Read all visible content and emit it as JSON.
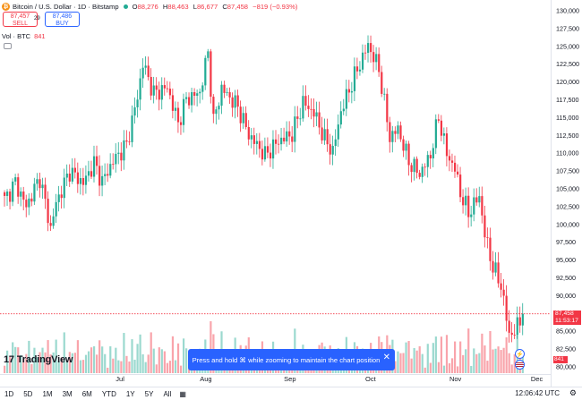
{
  "header": {
    "symbol_title": "Bitcoin / U.S. Dollar · 1D · Bitstamp",
    "ohlc": {
      "open": "88,276",
      "high": "88,463",
      "low": "86,677",
      "close": "87,458",
      "change": "−819 (−0.93%)"
    },
    "sell_price": "87,457",
    "sell_label": "SELL",
    "spread": "29",
    "buy_price": "87,486",
    "buy_label": "BUY",
    "volume_label": "Vol · BTC",
    "volume_value": "841"
  },
  "branding": {
    "logo_text": "TradingView"
  },
  "toast": {
    "message": "Press and hold ⌘ while zooming to maintain the chart position",
    "close_label": "✕"
  },
  "price_tag": {
    "price": "87,458",
    "countdown": "11:53:17"
  },
  "volume_tag": "841",
  "bottom_bar": {
    "ranges": [
      "1D",
      "5D",
      "1M",
      "3M",
      "6M",
      "YTD",
      "1Y",
      "5Y",
      "All"
    ],
    "calendar_icon": "calendar-range-icon",
    "time": "12:06:42 UTC",
    "settings_icon": "gear-icon"
  },
  "colors": {
    "up": "#22ab94",
    "down": "#f23645",
    "accent": "#2962ff"
  },
  "chart_data": {
    "type": "candlestick",
    "timeframe": "1D",
    "y_ticks": [
      130000,
      127500,
      125000,
      122500,
      120000,
      117500,
      115000,
      112500,
      110000,
      107500,
      105000,
      102500,
      100000,
      97500,
      95000,
      92500,
      90000,
      85000,
      82500,
      80000
    ],
    "y_tick_labels": [
      "130,000",
      "127,500",
      "125,000",
      "122,500",
      "120,000",
      "117,500",
      "115,000",
      "112,500",
      "110,000",
      "107,500",
      "105,000",
      "102,500",
      "100,000",
      "97,500",
      "95,000",
      "92,500",
      "90,000",
      "85,000",
      "82,500",
      "80,000"
    ],
    "ylim": [
      79000,
      130500
    ],
    "x_ticks": [
      {
        "label": "Jul",
        "index": 43
      },
      {
        "label": "Aug",
        "index": 74
      },
      {
        "label": "Sep",
        "index": 105
      },
      {
        "label": "Oct",
        "index": 135
      },
      {
        "label": "Nov",
        "index": 166
      },
      {
        "label": "Dec",
        "index": 196
      }
    ],
    "last_price": 87458,
    "anchors": [
      [
        0,
        103400
      ],
      [
        4,
        105900
      ],
      [
        8,
        102500
      ],
      [
        13,
        106600
      ],
      [
        17,
        99400
      ],
      [
        19,
        103000
      ],
      [
        24,
        107500
      ],
      [
        29,
        105800
      ],
      [
        33,
        108600
      ],
      [
        36,
        106000
      ],
      [
        40,
        108900
      ],
      [
        45,
        111200
      ],
      [
        49,
        117900
      ],
      [
        51,
        122600
      ],
      [
        55,
        118400
      ],
      [
        60,
        119200
      ],
      [
        64,
        114200
      ],
      [
        67,
        117600
      ],
      [
        72,
        118500
      ],
      [
        75,
        124200
      ],
      [
        77,
        114400
      ],
      [
        80,
        119100
      ],
      [
        86,
        116500
      ],
      [
        90,
        112600
      ],
      [
        96,
        109700
      ],
      [
        101,
        111700
      ],
      [
        106,
        112700
      ],
      [
        110,
        117100
      ],
      [
        114,
        115700
      ],
      [
        118,
        112000
      ],
      [
        121,
        110200
      ],
      [
        124,
        115900
      ],
      [
        129,
        120800
      ],
      [
        134,
        125200
      ],
      [
        138,
        121800
      ],
      [
        142,
        112200
      ],
      [
        145,
        113400
      ],
      [
        149,
        108800
      ],
      [
        153,
        107100
      ],
      [
        157,
        109700
      ],
      [
        160,
        115100
      ],
      [
        163,
        109900
      ],
      [
        166,
        107800
      ],
      [
        168,
        104400
      ],
      [
        171,
        101600
      ],
      [
        175,
        104000
      ],
      [
        177,
        98600
      ],
      [
        180,
        94000
      ],
      [
        183,
        91500
      ],
      [
        185,
        86800
      ],
      [
        186,
        84600
      ],
      [
        188,
        84900
      ],
      [
        191,
        87458
      ]
    ]
  }
}
